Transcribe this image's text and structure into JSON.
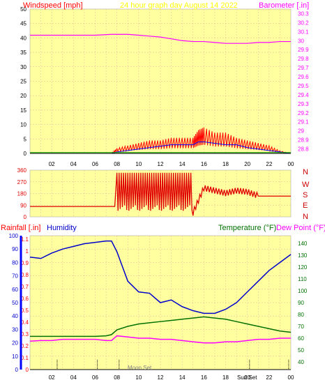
{
  "header": {
    "title": "24 hour graph day  August 14 2022",
    "left_axis_label": "Windspeed [mph]",
    "right_axis_label": "Barometer [.in]"
  },
  "time_axis": {
    "ticks": [
      "02",
      "04",
      "06",
      "08",
      "10",
      "12",
      "14",
      "16",
      "18",
      "20",
      "22",
      "00"
    ]
  },
  "panel_wind": {
    "y_ticks": [
      "0",
      "5",
      "10",
      "15",
      "20",
      "25",
      "30",
      "35",
      "40",
      "45",
      "50"
    ],
    "baro_ticks": [
      "28.8",
      "28.9",
      "29",
      "29.1",
      "29.2",
      "29.3",
      "29.4",
      "29.5",
      "29.6",
      "29.7",
      "29.8",
      "29.9",
      "30",
      "30.1",
      "30.2",
      "30.3"
    ]
  },
  "panel_direction": {
    "y_ticks": [
      "0",
      "90",
      "180",
      "270",
      "360"
    ],
    "compass_labels": [
      "N",
      "W",
      "S",
      "E",
      "N"
    ]
  },
  "panel_climate": {
    "left_label_1": "Rainfall [.in]",
    "left_label_2": "Humidity",
    "right_label_1": "Temperature (°F)",
    "right_label_2": "Dew Point (°F)",
    "rain_ticks": [
      "0",
      "0.1",
      "0.2",
      "0.3",
      "0.4",
      "0.5",
      "0.6",
      "0.7",
      "0.8",
      "0.9",
      "1",
      "1.1"
    ],
    "humidity_ticks": [
      "0",
      "10",
      "20",
      "30",
      "40",
      "50",
      "60",
      "70",
      "80",
      "90",
      "100"
    ],
    "temp_ticks": [
      "40",
      "50",
      "60",
      "70",
      "80",
      "90",
      "100",
      "110",
      "120",
      "130",
      "140"
    ],
    "events": [
      {
        "label": "Moon Set",
        "hour": 8.2
      },
      {
        "label": "Sun Set",
        "hour": 20.2
      },
      {
        "label": "",
        "hour": 2.5
      },
      {
        "label": "",
        "hour": 6.2
      },
      {
        "label": "",
        "hour": 23.8
      }
    ]
  },
  "colors": {
    "background": "#ffffa0",
    "grid": "#e0b8a0",
    "wind_speed": "#ff0000",
    "wind_avg": "#0000ff",
    "wind_other": "#00a000",
    "barometer": "#ff00ff",
    "direction": "#e00000",
    "humidity": "#0000cc",
    "temperature": "#007000",
    "dew_point": "#ff00ff",
    "title_yellow": "#ffff00",
    "rain_axis": "#0000ff"
  },
  "chart_data": [
    {
      "type": "line",
      "title": "24 hour graph day  August 14 2022",
      "xlabel": "",
      "ylabel": "Windspeed [mph]",
      "y2label": "Barometer [.in]",
      "ylim": [
        0,
        50
      ],
      "y2lim": [
        28.75,
        30.35
      ],
      "x": [
        0,
        2,
        4,
        6,
        7.5,
        8,
        9,
        10,
        11,
        12,
        13,
        14,
        15,
        15.5,
        16,
        17,
        18,
        19,
        20,
        21,
        22,
        23,
        24
      ],
      "series": [
        {
          "name": "Windspeed",
          "values": [
            0,
            0,
            0,
            0,
            0,
            2,
            3,
            4,
            5,
            5,
            6,
            6,
            6,
            9,
            10,
            8,
            8,
            6,
            5,
            4,
            3,
            1,
            0
          ]
        },
        {
          "name": "Wind average",
          "values": [
            0,
            0,
            0,
            0,
            0,
            0.5,
            1,
            1.5,
            2,
            2.5,
            3,
            3,
            3,
            4,
            4,
            3.5,
            3,
            3,
            2,
            1.5,
            1,
            0.5,
            0
          ]
        },
        {
          "name": "Barometer",
          "y_axis": "right",
          "values": [
            30.06,
            30.06,
            30.06,
            30.06,
            30.07,
            30.07,
            30.07,
            30.06,
            30.05,
            30.04,
            30.02,
            30.0,
            29.99,
            29.99,
            29.99,
            29.98,
            29.97,
            29.97,
            29.97,
            29.98,
            29.98,
            29.99,
            29.99
          ]
        }
      ]
    },
    {
      "type": "line",
      "title": "",
      "ylabel": "",
      "ylim": [
        0,
        360
      ],
      "x": [
        0,
        1,
        2,
        3,
        4,
        5,
        6,
        7,
        7.8,
        8,
        9,
        10,
        11,
        12,
        13,
        14,
        15,
        16,
        17,
        18,
        19,
        20,
        21,
        22,
        23,
        24
      ],
      "series": [
        {
          "name": "",
          "values": [
            80,
            80,
            80,
            80,
            80,
            80,
            80,
            80,
            80,
            340,
            340,
            100,
            60,
            340,
            60,
            340,
            30,
            220,
            200,
            180,
            200,
            190,
            160,
            160,
            160,
            160
          ]
        }
      ]
    },
    {
      "type": "line",
      "title": "",
      "ylabel": "Humidity",
      "y2label": "Temperature (°F)",
      "ylim": [
        0,
        100
      ],
      "y2lim": [
        33.5,
        146.5
      ],
      "x": [
        0,
        1,
        2,
        3,
        4,
        5,
        6,
        7,
        7.5,
        8,
        9,
        10,
        11,
        12,
        13,
        14,
        15,
        16,
        17,
        18,
        19,
        20,
        21,
        22,
        23,
        24
      ],
      "series": [
        {
          "name": "Humidity",
          "values": [
            84,
            83,
            87,
            90,
            92,
            94,
            95,
            96,
            96,
            88,
            66,
            58,
            57,
            50,
            52,
            47,
            44,
            42,
            42,
            45,
            50,
            58,
            66,
            74,
            80,
            86
          ]
        },
        {
          "name": "Temperature",
          "y_axis": "right",
          "values": [
            61.5,
            61.5,
            61.5,
            61.5,
            61.5,
            61.5,
            61.5,
            62,
            63,
            67,
            70,
            72,
            73,
            74,
            75,
            76,
            77,
            78,
            77,
            76,
            74,
            72,
            70,
            68,
            66,
            65
          ]
        },
        {
          "name": "Dew Point",
          "y_axis": "right",
          "values": [
            57.5,
            58,
            58,
            59,
            59,
            59,
            59,
            58,
            58,
            62,
            61,
            60,
            60,
            59,
            59,
            58,
            57,
            56,
            56,
            57,
            57,
            58,
            59,
            59,
            60,
            60
          ]
        },
        {
          "name": "Rainfall",
          "values": [
            0,
            0,
            0,
            0,
            0,
            0,
            0,
            0,
            0,
            0,
            0,
            0,
            0,
            0,
            0,
            0,
            0,
            0,
            0,
            0,
            0,
            0,
            0,
            0,
            0,
            0
          ]
        }
      ]
    }
  ]
}
